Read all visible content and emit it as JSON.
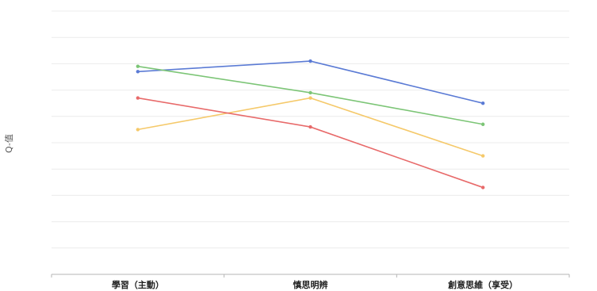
{
  "chart_data": {
    "type": "line",
    "ylabel": "Q-值",
    "xlabel": "",
    "categories": [
      "學習（主動）",
      "慎思明辨",
      "創意思維（享受）"
    ],
    "gridlines": 10,
    "series": [
      {
        "color": "#5b7bd5",
        "values": [
          7.7,
          8.1,
          6.5
        ]
      },
      {
        "color": "#7cc576",
        "values": [
          7.9,
          6.9,
          5.7
        ]
      },
      {
        "color": "#f5c96a",
        "values": [
          5.5,
          6.7,
          4.5
        ]
      },
      {
        "color": "#e86a6a",
        "values": [
          6.7,
          5.6,
          3.3
        ]
      }
    ],
    "ylim": [
      0,
      10
    ],
    "grid": true,
    "legend": "none"
  }
}
